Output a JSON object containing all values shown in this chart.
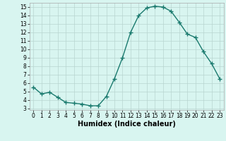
{
  "x": [
    0,
    1,
    2,
    3,
    4,
    5,
    6,
    7,
    8,
    9,
    10,
    11,
    12,
    13,
    14,
    15,
    16,
    17,
    18,
    19,
    20,
    21,
    22,
    23
  ],
  "y": [
    5.5,
    4.7,
    4.9,
    4.3,
    3.7,
    3.6,
    3.5,
    3.3,
    3.3,
    4.4,
    6.5,
    9.0,
    12.0,
    14.0,
    14.9,
    15.1,
    15.0,
    14.5,
    13.2,
    11.8,
    11.4,
    9.7,
    8.3,
    6.5
  ],
  "line_color": "#1a7a6e",
  "marker": "+",
  "markersize": 4,
  "linewidth": 1.0,
  "xlabel": "Humidex (Indice chaleur)",
  "xlim": [
    -0.5,
    23.5
  ],
  "ylim": [
    2.8,
    15.5
  ],
  "yticks": [
    3,
    4,
    5,
    6,
    7,
    8,
    9,
    10,
    11,
    12,
    13,
    14,
    15
  ],
  "xticks": [
    0,
    1,
    2,
    3,
    4,
    5,
    6,
    7,
    8,
    9,
    10,
    11,
    12,
    13,
    14,
    15,
    16,
    17,
    18,
    19,
    20,
    21,
    22,
    23
  ],
  "bg_color": "#d8f5f0",
  "grid_color": "#b8d4d0",
  "tick_fontsize": 5.5,
  "xlabel_fontsize": 7.0
}
